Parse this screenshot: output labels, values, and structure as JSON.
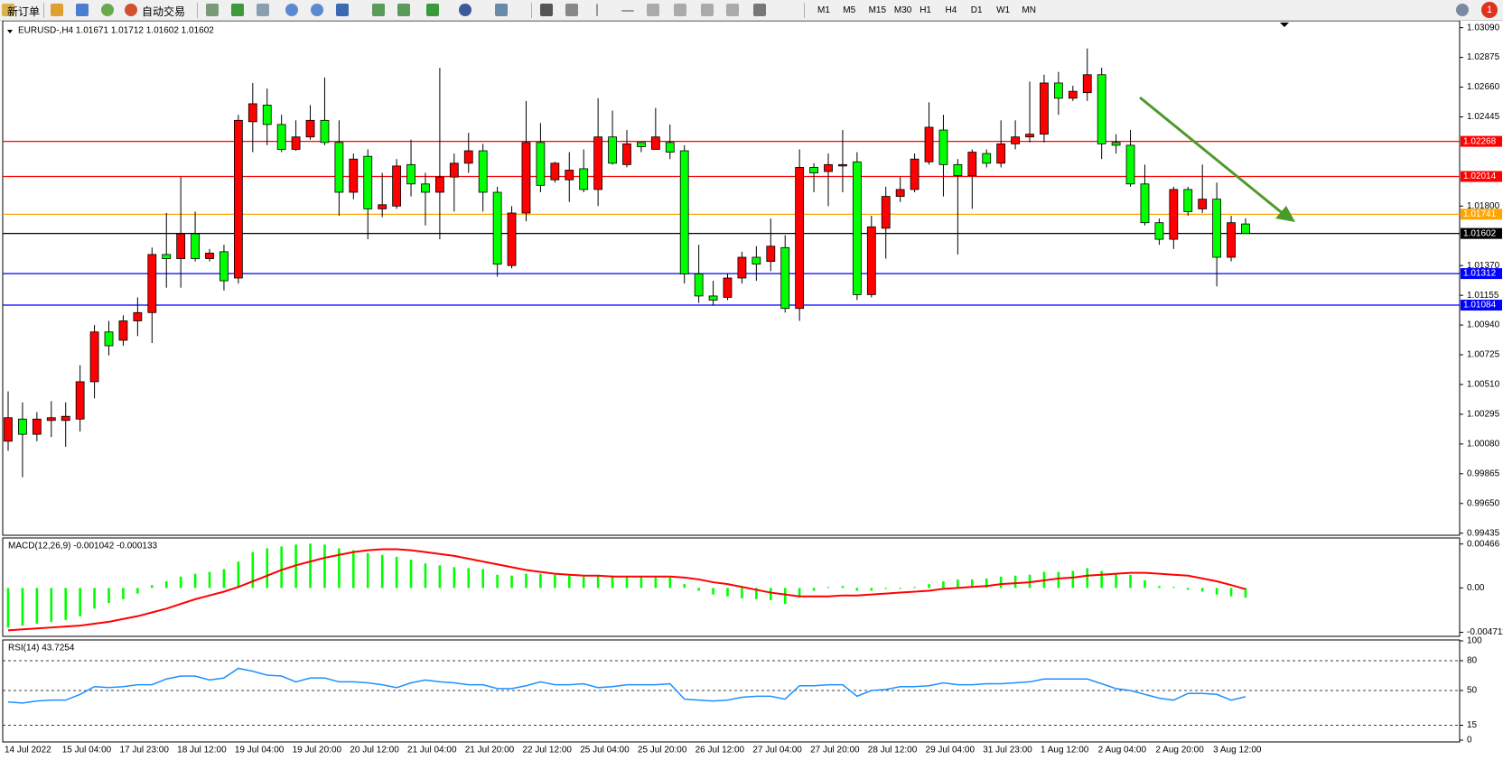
{
  "toolbar": {
    "new_order": "新订单",
    "auto_trading": "自动交易",
    "timeframes": [
      "M1",
      "M5",
      "M15",
      "M30",
      "H1",
      "H4",
      "D1",
      "W1",
      "MN"
    ],
    "badge": "1"
  },
  "chart_data": [
    {
      "type": "candlestick",
      "title": "EURUSD-,H4  1.01671 1.01712 1.01602 1.01602",
      "bull_color": "#ff0000",
      "bear_color": "#00ff00",
      "categories": [
        "14 Jul 2022",
        null,
        null,
        null,
        "15 Jul 04:00",
        null,
        null,
        null,
        "17 Jul 23:00",
        null,
        null,
        null,
        "18 Jul 12:00",
        null,
        null,
        null,
        "19 Jul 04:00",
        null,
        null,
        null,
        "19 Jul 20:00",
        null,
        null,
        null,
        "20 Jul 12:00",
        null,
        null,
        null,
        "21 Jul 04:00",
        null,
        null,
        null,
        "21 Jul 20:00",
        null,
        null,
        null,
        "22 Jul 12:00",
        null,
        null,
        null,
        "25 Jul 04:00",
        null,
        null,
        null,
        "25 Jul 20:00",
        null,
        null,
        null,
        "26 Jul 12:00",
        null,
        null,
        null,
        "27 Jul 04:00",
        null,
        null,
        null,
        "27 Jul 20:00",
        null,
        null,
        null,
        "28 Jul 12:00",
        null,
        null,
        null,
        "29 Jul 04:00",
        null,
        null,
        null,
        "31 Jul 23:00",
        null,
        null,
        null,
        "1 Aug 12:00",
        null,
        null,
        null,
        "2 Aug 04:00",
        null,
        null,
        null,
        "2 Aug 20:00",
        null,
        null,
        null,
        "3 Aug 12:00",
        null,
        null
      ],
      "ohlc": [
        [
          1.001,
          1.0046,
          1.0003,
          1.0027
        ],
        [
          1.0026,
          1.0038,
          0.9984,
          1.0015
        ],
        [
          1.0015,
          1.0031,
          1.001,
          1.0026
        ],
        [
          1.0025,
          1.0039,
          1.0013,
          1.0027
        ],
        [
          1.0025,
          1.0038,
          1.0006,
          1.0028
        ],
        [
          1.0026,
          1.0065,
          1.0017,
          1.0053
        ],
        [
          1.0053,
          1.0094,
          1.0041,
          1.0089
        ],
        [
          1.0089,
          1.0097,
          1.0072,
          1.0079
        ],
        [
          1.0083,
          1.0101,
          1.0079,
          1.0097
        ],
        [
          1.0097,
          1.0114,
          1.0086,
          1.0103
        ],
        [
          1.0103,
          1.015,
          1.0081,
          1.0145
        ],
        [
          1.0145,
          1.0175,
          1.0121,
          1.0142
        ],
        [
          1.0142,
          1.0201,
          1.0121,
          1.016
        ],
        [
          1.016,
          1.0176,
          1.014,
          1.0142
        ],
        [
          1.0142,
          1.0149,
          1.014,
          1.0146
        ],
        [
          1.0147,
          1.0152,
          1.0119,
          1.0126
        ],
        [
          1.0128,
          1.0246,
          1.0124,
          1.0242
        ],
        [
          1.0241,
          1.0269,
          1.0219,
          1.0254
        ],
        [
          1.0253,
          1.0265,
          1.0224,
          1.0239
        ],
        [
          1.0239,
          1.0246,
          1.0219,
          1.0221
        ],
        [
          1.0221,
          1.0242,
          1.022,
          1.023
        ],
        [
          1.023,
          1.0253,
          1.0228,
          1.0242
        ],
        [
          1.0242,
          1.0273,
          1.0224,
          1.0226
        ],
        [
          1.0226,
          1.0242,
          1.0173,
          1.019
        ],
        [
          1.019,
          1.0218,
          1.0185,
          1.0214
        ],
        [
          1.0216,
          1.0221,
          1.0156,
          1.0178
        ],
        [
          1.0178,
          1.0204,
          1.0172,
          1.0181
        ],
        [
          1.018,
          1.0214,
          1.0178,
          1.0209
        ],
        [
          1.021,
          1.0228,
          1.0187,
          1.0196
        ],
        [
          1.0196,
          1.0204,
          1.0166,
          1.019
        ],
        [
          1.019,
          1.028,
          1.0156,
          1.0201
        ],
        [
          1.0201,
          1.0218,
          1.0176,
          1.0211
        ],
        [
          1.0211,
          1.0233,
          1.0204,
          1.022
        ],
        [
          1.022,
          1.0225,
          1.0176,
          1.019
        ],
        [
          1.019,
          1.0194,
          1.0129,
          1.0138
        ],
        [
          1.0137,
          1.018,
          1.0135,
          1.0175
        ],
        [
          1.0175,
          1.0256,
          1.0169,
          1.0226
        ],
        [
          1.0226,
          1.024,
          1.019,
          1.0195
        ],
        [
          1.0199,
          1.0212,
          1.0197,
          1.0211
        ],
        [
          1.0199,
          1.0219,
          1.0183,
          1.0206
        ],
        [
          1.0207,
          1.0221,
          1.019,
          1.0192
        ],
        [
          1.0192,
          1.0258,
          1.018,
          1.023
        ],
        [
          1.023,
          1.0249,
          1.021,
          1.0211
        ],
        [
          1.021,
          1.0235,
          1.0208,
          1.0225
        ],
        [
          1.0226,
          1.0226,
          1.0219,
          1.0223
        ],
        [
          1.0221,
          1.0251,
          1.0221,
          1.023
        ],
        [
          1.0226,
          1.0239,
          1.0214,
          1.0219
        ],
        [
          1.022,
          1.0224,
          1.0124,
          1.0131
        ],
        [
          1.0131,
          1.0152,
          1.011,
          1.0115
        ],
        [
          1.0115,
          1.0126,
          1.0108,
          1.0112
        ],
        [
          1.0114,
          1.0131,
          1.0112,
          1.0128
        ],
        [
          1.0128,
          1.0147,
          1.0124,
          1.0143
        ],
        [
          1.0143,
          1.0151,
          1.0126,
          1.0138
        ],
        [
          1.014,
          1.0171,
          1.0133,
          1.0151
        ],
        [
          1.015,
          1.0159,
          1.0103,
          1.0106
        ],
        [
          1.0106,
          1.0221,
          1.0097,
          1.0208
        ],
        [
          1.0208,
          1.0211,
          1.019,
          1.0204
        ],
        [
          1.0205,
          1.0218,
          1.018,
          1.021
        ],
        [
          1.0209,
          1.0235,
          1.019,
          1.021
        ],
        [
          1.0212,
          1.0219,
          1.0112,
          1.0116
        ],
        [
          1.0116,
          1.0173,
          1.0114,
          1.0165
        ],
        [
          1.0164,
          1.0194,
          1.0142,
          1.0187
        ],
        [
          1.0187,
          1.0201,
          1.0183,
          1.0192
        ],
        [
          1.0192,
          1.0218,
          1.019,
          1.0214
        ],
        [
          1.0212,
          1.0255,
          1.021,
          1.0237
        ],
        [
          1.0235,
          1.0246,
          1.0187,
          1.021
        ],
        [
          1.021,
          1.0214,
          1.0145,
          1.0202
        ],
        [
          1.0202,
          1.0221,
          1.0178,
          1.0219
        ],
        [
          1.0218,
          1.0221,
          1.0208,
          1.0211
        ],
        [
          1.0211,
          1.0242,
          1.0208,
          1.0225
        ],
        [
          1.0225,
          1.0242,
          1.0221,
          1.023
        ],
        [
          1.023,
          1.027,
          1.0226,
          1.0232
        ],
        [
          1.0232,
          1.0275,
          1.0226,
          1.0269
        ],
        [
          1.0269,
          1.0277,
          1.0246,
          1.0258
        ],
        [
          1.0258,
          1.0267,
          1.0256,
          1.0263
        ],
        [
          1.0262,
          1.0294,
          1.0256,
          1.0275
        ],
        [
          1.0275,
          1.028,
          1.0214,
          1.0225
        ],
        [
          1.0226,
          1.0232,
          1.0218,
          1.0224
        ],
        [
          1.0224,
          1.0235,
          1.0194,
          1.0196
        ],
        [
          1.0196,
          1.021,
          1.0166,
          1.0168
        ],
        [
          1.0168,
          1.0171,
          1.0152,
          1.0156
        ],
        [
          1.0156,
          1.0194,
          1.0149,
          1.0192
        ],
        [
          1.0192,
          1.0194,
          1.0173,
          1.0176
        ],
        [
          1.0178,
          1.021,
          1.0175,
          1.0185
        ],
        [
          1.0185,
          1.0197,
          1.0122,
          1.0143
        ],
        [
          1.0143,
          1.0173,
          1.014,
          1.0168
        ],
        [
          1.01671,
          1.01712,
          1.01602,
          1.01602
        ]
      ],
      "hlines": [
        {
          "value": 1.02268,
          "label": "1.02268",
          "color": "#ff0000"
        },
        {
          "value": 1.02014,
          "label": "1.02014",
          "color": "#ff0000"
        },
        {
          "value": 1.01741,
          "label": "1.01741",
          "color": "#ffa500"
        },
        {
          "value": 1.01602,
          "label": "1.01602",
          "color": "#000000"
        },
        {
          "value": 1.01312,
          "label": "1.01312",
          "color": "#0000ff"
        },
        {
          "value": 1.01084,
          "label": "1.01084",
          "color": "#0000ff"
        }
      ],
      "ylim": [
        0.9942,
        1.0314
      ],
      "yticks": [
        {
          "value": 1.0309,
          "label": "1.03090"
        },
        {
          "value": 1.02875,
          "label": "1.02875"
        },
        {
          "value": 1.0266,
          "label": "1.02660"
        },
        {
          "value": 1.02445,
          "label": "1.02445"
        },
        {
          "value": 1.018,
          "label": "1.01800"
        },
        {
          "value": 1.0137,
          "label": "1.01370"
        },
        {
          "value": 1.01155,
          "label": "1.01155"
        },
        {
          "value": 1.0094,
          "label": "1.00940"
        },
        {
          "value": 1.00725,
          "label": "1.00725"
        },
        {
          "value": 1.0051,
          "label": "1.00510"
        },
        {
          "value": 1.00295,
          "label": "1.00295"
        },
        {
          "value": 1.0008,
          "label": "1.00080"
        },
        {
          "value": 0.99865,
          "label": "0.99865"
        },
        {
          "value": 0.9965,
          "label": "0.99650"
        },
        {
          "value": 0.99435,
          "label": "0.99435"
        }
      ]
    },
    {
      "type": "macd",
      "title": "MACD(12,26,9) -0.001042 -0.000133",
      "histogram_color": "#00ff00",
      "signal_color": "#ff0000",
      "histogram": [
        -0.0042,
        -0.004,
        -0.0038,
        -0.0036,
        -0.0034,
        -0.003,
        -0.0022,
        -0.0016,
        -0.0012,
        -0.0006,
        0.0003,
        0.0007,
        0.0012,
        0.0015,
        0.0017,
        0.002,
        0.0028,
        0.0038,
        0.0042,
        0.0044,
        0.0046,
        0.0047,
        0.0046,
        0.0042,
        0.004,
        0.0037,
        0.0035,
        0.0033,
        0.003,
        0.0026,
        0.0024,
        0.0022,
        0.0021,
        0.002,
        0.0014,
        0.0013,
        0.0015,
        0.0015,
        0.0014,
        0.0013,
        0.0012,
        0.0013,
        0.0013,
        0.0012,
        0.0012,
        0.0012,
        0.0011,
        0.0004,
        -0.0003,
        -0.0007,
        -0.0009,
        -0.0011,
        -0.0012,
        -0.0013,
        -0.0017,
        -0.001,
        -0.0003,
        0.0001,
        0.0002,
        -0.0003,
        -0.0003,
        -0.0001,
        -0.0001,
        0.0001,
        0.0004,
        0.0007,
        0.0009,
        0.0009,
        0.001,
        0.0012,
        0.0013,
        0.0014,
        0.0017,
        0.0017,
        0.0018,
        0.0021,
        0.0018,
        0.0015,
        0.0014,
        0.0008,
        0.0002,
        0.0001,
        -0.0002,
        -0.0004,
        -0.0007,
        -0.0009,
        -0.001042
      ],
      "signal": [
        -0.0045,
        -0.0044,
        -0.0043,
        -0.0042,
        -0.0041,
        -0.004,
        -0.0038,
        -0.0036,
        -0.0033,
        -0.003,
        -0.0026,
        -0.0022,
        -0.0017,
        -0.0012,
        -0.0008,
        -0.0004,
        0.0001,
        0.0007,
        0.0013,
        0.0019,
        0.0024,
        0.0028,
        0.0032,
        0.0035,
        0.0038,
        0.004,
        0.0041,
        0.0041,
        0.004,
        0.0038,
        0.0036,
        0.0034,
        0.0031,
        0.0028,
        0.0025,
        0.0022,
        0.0019,
        0.0017,
        0.0015,
        0.0014,
        0.0013,
        0.0013,
        0.0012,
        0.0012,
        0.0012,
        0.0012,
        0.0012,
        0.0011,
        0.0009,
        0.0006,
        0.0004,
        0.0001,
        -0.0002,
        -0.0005,
        -0.0007,
        -0.0009,
        -0.0009,
        -0.0009,
        -0.0008,
        -0.0008,
        -0.0007,
        -0.0006,
        -0.0005,
        -0.0004,
        -0.0003,
        -0.0001,
        0,
        0.0001,
        0.0002,
        0.0004,
        0.0005,
        0.0006,
        0.0008,
        0.001,
        0.0011,
        0.0013,
        0.0014,
        0.0015,
        0.0016,
        0.0016,
        0.0015,
        0.0014,
        0.0013,
        0.001,
        0.0007,
        0.0003,
        -0.000133
      ],
      "ylim": [
        -0.00514,
        0.0053
      ],
      "yticks": [
        {
          "value": 0.00466,
          "label": "0.00466"
        },
        {
          "value": 0,
          "label": "0.00"
        },
        {
          "value": -0.004711,
          "label": "-0.004711"
        }
      ]
    },
    {
      "type": "line",
      "title": "RSI(14) 43.7254",
      "color": "#1e90ff",
      "values": [
        38.4,
        37.4,
        39.4,
        40.3,
        40.3,
        46.1,
        53.9,
        52.9,
        53.9,
        55.8,
        55.8,
        61.6,
        64.5,
        64.5,
        60.6,
        62.6,
        72.3,
        69.4,
        65.5,
        64.5,
        58.7,
        62.6,
        62.6,
        58.7,
        58.7,
        57.7,
        55.8,
        52.9,
        57.7,
        60.6,
        58.7,
        57.7,
        55.8,
        55.8,
        51.9,
        51.9,
        54.8,
        58.7,
        55.8,
        55.8,
        56.8,
        52.9,
        53.9,
        55.8,
        55.8,
        55.8,
        56.8,
        41.3,
        40.3,
        39.4,
        40.3,
        43.2,
        44.2,
        44.2,
        41.3,
        54.8,
        54.8,
        55.8,
        55.8,
        44.2,
        50,
        51,
        53.9,
        53.9,
        54.8,
        57.7,
        55.8,
        55.8,
        56.8,
        56.8,
        57.7,
        58.7,
        61.6,
        61.6,
        61.6,
        61.6,
        56.8,
        51.9,
        50,
        46.1,
        42.3,
        40.3,
        47.1,
        47.1,
        46.1,
        40.3,
        43.7254
      ],
      "levels": [
        80,
        50,
        15
      ],
      "ylim": [
        0,
        100
      ],
      "yticks": [
        100,
        80,
        50,
        15,
        0
      ]
    }
  ]
}
